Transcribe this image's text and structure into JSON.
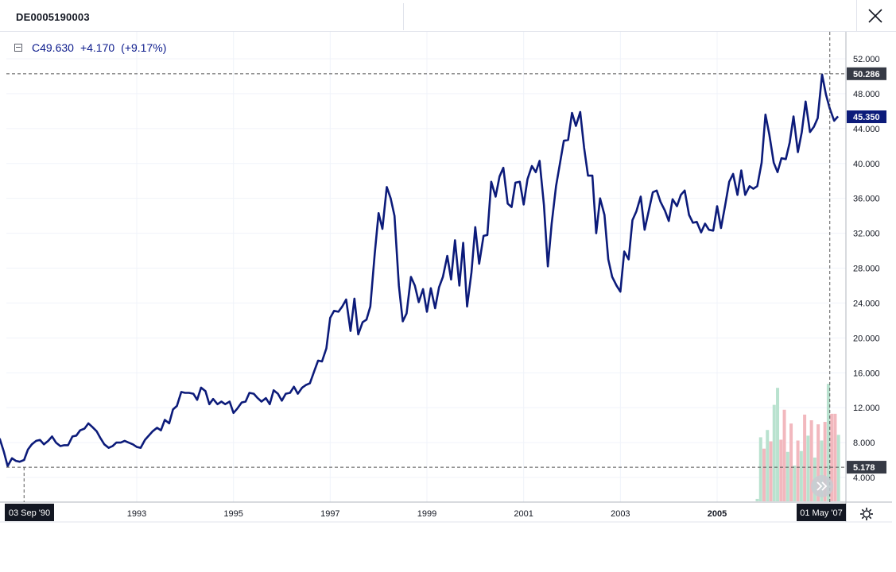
{
  "header": {
    "symbol": "DE0005190003"
  },
  "legend": {
    "close_value": "C49.630",
    "change": "+4.170",
    "change_pct": "(+9.17%)"
  },
  "colors": {
    "line": "#0c1b7a",
    "volume_up": "#b9e2cf",
    "volume_down": "#f2b8be",
    "grid": "#f0f3fa",
    "price_tag": "#0c1b7a",
    "dark_tag": "#363a45"
  },
  "icons": [
    "close-icon",
    "collapse-icon",
    "settings-icon",
    "double-chevron-right-icon"
  ],
  "chart_data": {
    "type": "line",
    "y_ticks": [
      "4.000",
      "8.000",
      "12.000",
      "16.000",
      "20.000",
      "24.000",
      "28.000",
      "32.000",
      "36.000",
      "40.000",
      "44.000",
      "48.000",
      "52.000"
    ],
    "x_ticks": [
      "1993",
      "1995",
      "1997",
      "1999",
      "2001",
      "2003",
      "2005"
    ],
    "x_tick_bold": "2005",
    "ylim": [
      0,
      54
    ],
    "xlim": [
      1990.0,
      2007.5
    ],
    "crosshair": {
      "high_label": "50.286",
      "high_value": 50.286,
      "low_label": "5.178",
      "low_value": 5.178,
      "low_date_label": "03 Sep '90",
      "low_date": 1990.67,
      "high_date_label": "01 May '07",
      "high_date": 2007.33
    },
    "last_price": {
      "label": "45.350",
      "value": 45.35
    },
    "series": [
      {
        "x": [
          1990.0,
          1990.08,
          1990.17,
          1990.25,
          1990.33,
          1990.42,
          1990.5,
          1990.58,
          1990.67,
          1990.75,
          1990.83,
          1990.92,
          1991.0,
          1991.08,
          1991.17,
          1991.25,
          1991.33,
          1991.42,
          1991.5,
          1991.58,
          1991.67,
          1991.75,
          1991.83,
          1991.92,
          1992.0,
          1992.08,
          1992.17,
          1992.25,
          1992.33,
          1992.42,
          1992.5,
          1992.58,
          1992.67,
          1992.75,
          1992.83,
          1992.92,
          1993.0,
          1993.08,
          1993.17,
          1993.25,
          1993.33,
          1993.42,
          1993.5,
          1993.58,
          1993.67,
          1993.75,
          1993.83,
          1993.92,
          1994.0,
          1994.08,
          1994.17,
          1994.25,
          1994.33,
          1994.42,
          1994.5,
          1994.58,
          1994.67,
          1994.75,
          1994.83,
          1994.92,
          1995.0,
          1995.08,
          1995.17,
          1995.25,
          1995.33,
          1995.42,
          1995.5,
          1995.58,
          1995.67,
          1995.75,
          1995.83,
          1995.92,
          1996.0,
          1996.08,
          1996.17,
          1996.25,
          1996.33,
          1996.42,
          1996.5,
          1996.58,
          1996.67,
          1996.75,
          1996.83,
          1996.92,
          1997.0,
          1997.08,
          1997.17,
          1997.25,
          1997.33,
          1997.42,
          1997.5,
          1997.58,
          1997.67,
          1997.75,
          1997.83,
          1997.92,
          1998.0,
          1998.08,
          1998.17,
          1998.25,
          1998.33,
          1998.42,
          1998.5,
          1998.58,
          1998.67,
          1998.75,
          1998.83,
          1998.92,
          1999.0,
          1999.08,
          1999.17,
          1999.25,
          1999.33,
          1999.42,
          1999.5,
          1999.58,
          1999.67,
          1999.75,
          1999.83,
          1999.92,
          2000.0,
          2000.08,
          2000.17,
          2000.25,
          2000.33,
          2000.42,
          2000.5,
          2000.58,
          2000.67,
          2000.75,
          2000.83,
          2000.92,
          2001.0,
          2001.08,
          2001.17,
          2001.25,
          2001.33,
          2001.42,
          2001.5,
          2001.58,
          2001.67,
          2001.75,
          2001.83,
          2001.92,
          2002.0,
          2002.08,
          2002.17,
          2002.25,
          2002.33,
          2002.42,
          2002.5,
          2002.58,
          2002.67,
          2002.75,
          2002.83,
          2002.92,
          2003.0,
          2003.08,
          2003.17,
          2003.25,
          2003.33,
          2003.42,
          2003.5,
          2003.58,
          2003.67,
          2003.75,
          2003.83,
          2003.92,
          2004.0,
          2004.08,
          2004.17,
          2004.25,
          2004.33,
          2004.42,
          2004.5,
          2004.58,
          2004.67,
          2004.75,
          2004.83,
          2004.92,
          2005.0,
          2005.08,
          2005.17,
          2005.25,
          2005.33,
          2005.42,
          2005.5,
          2005.58,
          2005.67,
          2005.75,
          2005.83,
          2005.92,
          2006.0,
          2006.08,
          2006.17,
          2006.25,
          2006.33,
          2006.42,
          2006.5,
          2006.58,
          2006.67,
          2006.75,
          2006.83,
          2006.92,
          2007.0,
          2007.08,
          2007.17,
          2007.25,
          2007.33,
          2007.42,
          2007.5
        ],
        "values": [
          8.6,
          8.4,
          8.4,
          7.0,
          5.3,
          6.2,
          5.9,
          5.8,
          6.0,
          7.2,
          7.8,
          8.2,
          8.3,
          7.8,
          8.2,
          8.7,
          8.0,
          7.6,
          7.7,
          7.7,
          8.7,
          8.8,
          9.4,
          9.6,
          10.2,
          9.8,
          9.3,
          8.5,
          7.8,
          7.4,
          7.6,
          8.0,
          8.0,
          8.2,
          8.0,
          7.8,
          7.5,
          7.4,
          8.3,
          8.8,
          9.3,
          9.7,
          9.4,
          10.6,
          10.2,
          11.8,
          12.2,
          13.8,
          13.7,
          13.7,
          13.6,
          12.9,
          14.3,
          13.9,
          12.4,
          13.0,
          12.4,
          12.7,
          12.4,
          12.7,
          11.4,
          11.9,
          12.6,
          12.7,
          13.7,
          13.6,
          13.1,
          12.7,
          13.1,
          12.4,
          14.0,
          13.6,
          12.8,
          13.6,
          13.7,
          14.4,
          13.6,
          14.3,
          14.6,
          14.8,
          16.2,
          17.4,
          17.3,
          18.8,
          22.3,
          23.1,
          23.0,
          23.6,
          24.4,
          20.8,
          24.5,
          20.4,
          21.8,
          22.1,
          23.6,
          29.6,
          34.3,
          32.5,
          37.3,
          36.0,
          34.0,
          26.0,
          21.9,
          22.8,
          27.0,
          26.0,
          24.1,
          25.6,
          23.0,
          25.7,
          23.4,
          25.8,
          27.0,
          29.4,
          26.7,
          31.2,
          26.0,
          30.9,
          23.6,
          27.5,
          32.7,
          28.5,
          31.7,
          31.8,
          37.9,
          36.2,
          38.5,
          39.5,
          35.4,
          35.0,
          37.8,
          37.9,
          35.3,
          38.2,
          39.7,
          39.0,
          40.3,
          35.2,
          28.2,
          33.1,
          37.4,
          40.0,
          42.6,
          42.7,
          45.8,
          44.3,
          45.9,
          41.8,
          38.6,
          38.6,
          32.0,
          36.0,
          34.1,
          29.0,
          27.0,
          26.0,
          25.3,
          29.9,
          29.0,
          33.5,
          34.5,
          36.2,
          32.4,
          34.4,
          36.7,
          36.9,
          35.6,
          34.6,
          33.4,
          35.9,
          35.1,
          36.4,
          36.9,
          34.1,
          33.2,
          33.3,
          32.1,
          33.1,
          32.4,
          32.3,
          35.1,
          32.6,
          35.3,
          37.9,
          38.8,
          36.4,
          39.2,
          36.4,
          37.4,
          37.1,
          37.4,
          40.1,
          45.6,
          43.3,
          40.1,
          39.0,
          40.6,
          40.5,
          42.4,
          45.4,
          41.3,
          43.6,
          47.1,
          43.6,
          44.2,
          45.2,
          50.2,
          47.9,
          46.3,
          44.9,
          45.4
        ]
      }
    ],
    "volume": {
      "x": [
        2005.83,
        2005.9,
        2005.97,
        2006.04,
        2006.11,
        2006.18,
        2006.25,
        2006.32,
        2006.39,
        2006.46,
        2006.53,
        2006.6,
        2006.67,
        2006.74,
        2006.81,
        2006.88,
        2006.95,
        2007.02,
        2007.09,
        2007.16,
        2007.23,
        2007.3,
        2007.37,
        2007.44,
        2007.51
      ],
      "values": [
        0.3,
        7.9,
        6.5,
        8.8,
        7.4,
        11.9,
        14.0,
        7.6,
        11.3,
        6.1,
        9.6,
        4.4,
        7.5,
        6.2,
        10.7,
        8.1,
        10.0,
        5.4,
        9.5,
        7.5,
        9.8,
        14.5,
        10.8,
        10.8,
        8.2
      ],
      "up": [
        true,
        true,
        false,
        true,
        false,
        true,
        true,
        false,
        false,
        true,
        false,
        true,
        false,
        true,
        false,
        true,
        false,
        true,
        false,
        true,
        false,
        true,
        false,
        false,
        true
      ]
    }
  }
}
